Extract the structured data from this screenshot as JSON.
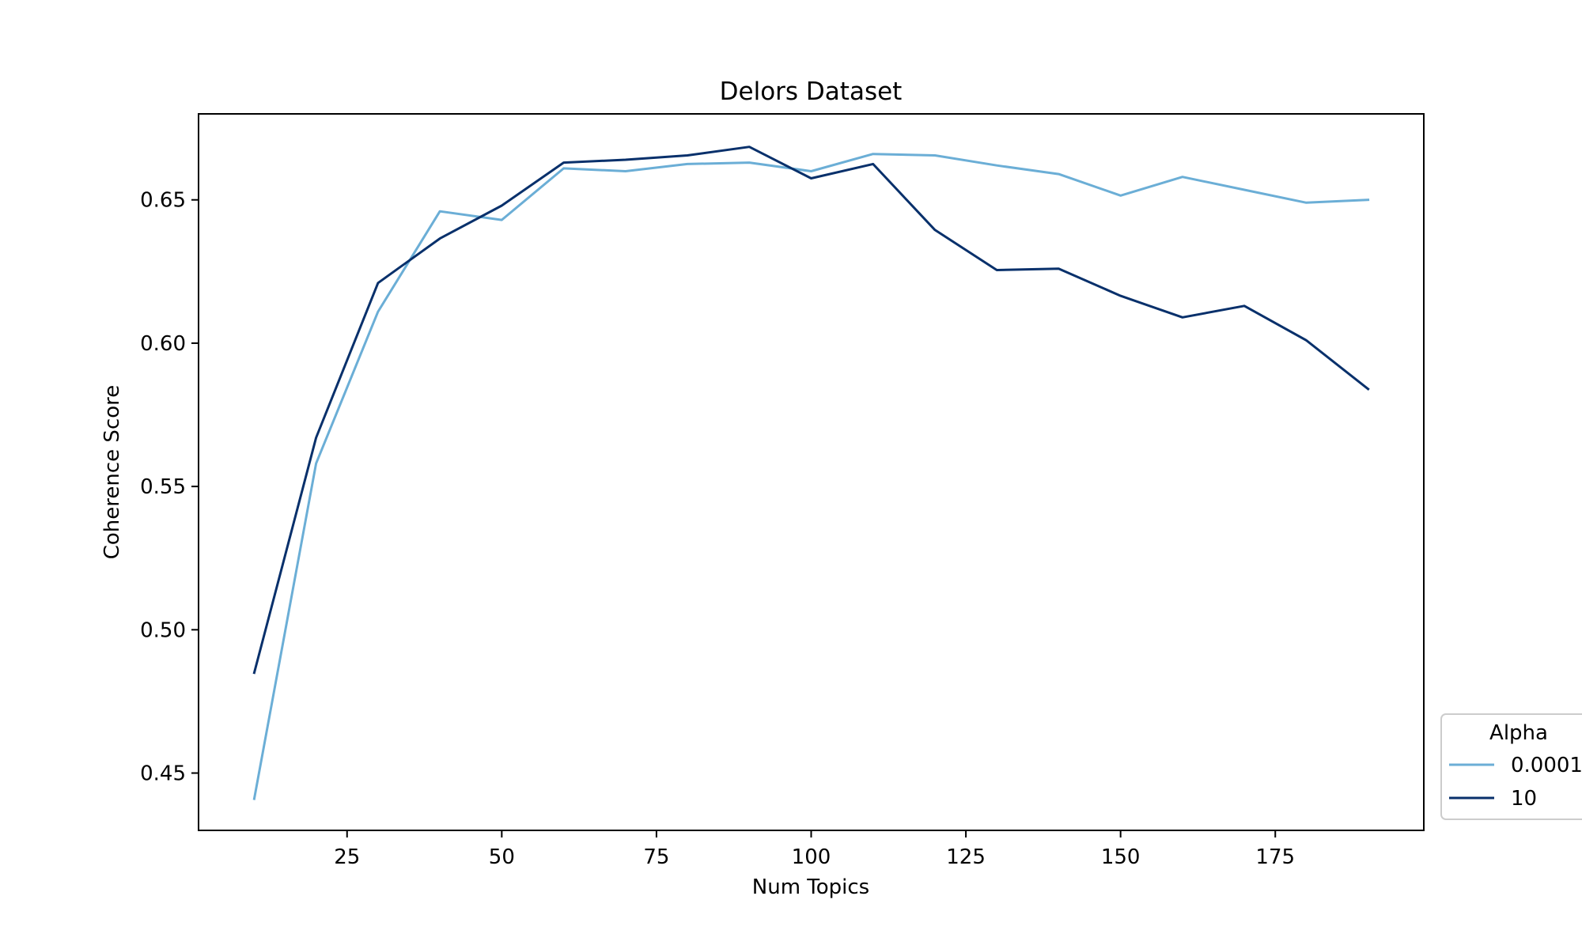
{
  "chart_data": {
    "type": "line",
    "title": "Delors Dataset",
    "xlabel": "Num Topics",
    "ylabel": "Coherence Score",
    "xlim": [
      1,
      199
    ],
    "ylim": [
      0.43,
      0.68
    ],
    "xticks": [
      25,
      50,
      75,
      100,
      125,
      150,
      175
    ],
    "yticks": [
      0.45,
      0.5,
      0.55,
      0.6,
      0.65
    ],
    "ytick_labels": [
      "0.45",
      "0.50",
      "0.55",
      "0.60",
      "0.65"
    ],
    "grid": false,
    "legend": {
      "title": "Alpha",
      "placement": "outside right, bottom",
      "clipped": true
    },
    "x": [
      10,
      20,
      30,
      40,
      50,
      60,
      70,
      80,
      90,
      100,
      110,
      120,
      130,
      140,
      150,
      160,
      170,
      180,
      190
    ],
    "series": [
      {
        "name": "0.0001",
        "color": "#6baed6",
        "values": [
          0.441,
          0.558,
          0.611,
          0.646,
          0.643,
          0.661,
          0.66,
          0.6625,
          0.663,
          0.66,
          0.666,
          0.6655,
          0.662,
          0.659,
          0.6515,
          0.658,
          0.6535,
          0.649,
          0.65
        ]
      },
      {
        "name": "10",
        "color": "#08306b",
        "values": [
          0.485,
          0.567,
          0.621,
          0.6365,
          0.648,
          0.663,
          0.664,
          0.6655,
          0.6685,
          0.6575,
          0.6625,
          0.6395,
          0.6255,
          0.626,
          0.6165,
          0.609,
          0.613,
          0.601,
          0.584
        ]
      }
    ]
  }
}
